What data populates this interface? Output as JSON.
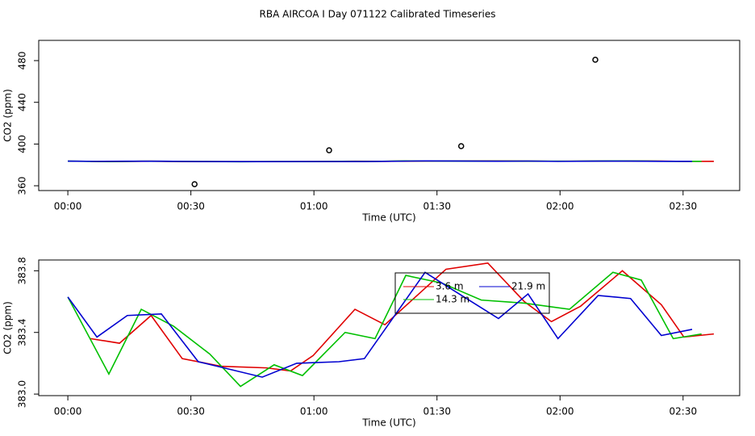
{
  "title": "RBA AIRCOA I  Day 071122  Calibrated Timeseries",
  "chart_data": [
    {
      "type": "line",
      "xlabel": "Time (UTC)",
      "ylabel": "CO2 (ppm)",
      "xlim": [
        -7.1,
        163.8
      ],
      "ylim": [
        355.4,
        499.4
      ],
      "xticks": [
        {
          "value": 0,
          "label": "00:00"
        },
        {
          "value": 30,
          "label": "00:30"
        },
        {
          "value": 60,
          "label": "01:00"
        },
        {
          "value": 90,
          "label": "01:30"
        },
        {
          "value": 120,
          "label": "02:00"
        },
        {
          "value": 150,
          "label": "02:30"
        }
      ],
      "yticks": [
        360,
        400,
        440,
        480
      ],
      "series": [
        {
          "name": "3.6 m",
          "color": "#e00000",
          "x": [
            5.5,
            12.6,
            20.3,
            27.9,
            37.5,
            48.4,
            54.3,
            59.8,
            70.0,
            77.3,
            92.2,
            102.4,
            111.3,
            117.9,
            125.0,
            135.2,
            144.7,
            150.2,
            157.5
          ],
          "values": [
            383.36,
            383.33,
            383.51,
            383.23,
            383.18,
            383.17,
            383.15,
            383.25,
            383.55,
            383.45,
            383.81,
            383.85,
            383.6,
            383.47,
            383.57,
            383.8,
            383.58,
            383.37,
            383.39
          ]
        },
        {
          "name": "14.3 m",
          "color": "#00c000",
          "x": [
            0,
            10.0,
            17.9,
            25.8,
            34.6,
            42.1,
            50.3,
            57.2,
            67.6,
            74.9,
            82.4,
            91.2,
            100.8,
            111.3,
            122.3,
            132.9,
            139.8,
            147.6,
            154.5
          ],
          "values": [
            383.63,
            383.13,
            383.55,
            383.44,
            383.26,
            383.05,
            383.19,
            383.12,
            383.4,
            383.36,
            383.77,
            383.72,
            383.61,
            383.59,
            383.55,
            383.79,
            383.74,
            383.36,
            383.39
          ]
        },
        {
          "name": "21.9 m",
          "color": "#0000d0",
          "x": [
            0,
            7.1,
            14.5,
            22.8,
            31.8,
            47.4,
            55.8,
            66.1,
            72.3,
            87.1,
            94.2,
            105.0,
            112.2,
            119.5,
            129.3,
            137.2,
            144.7,
            152.2
          ],
          "values": [
            383.63,
            383.37,
            383.51,
            383.52,
            383.21,
            383.11,
            383.2,
            383.21,
            383.23,
            383.79,
            383.67,
            383.49,
            383.65,
            383.36,
            383.64,
            383.62,
            383.38,
            383.42
          ]
        }
      ],
      "points": {
        "x": [
          30.9,
          63.7,
          95.9,
          128.6
        ],
        "values": [
          361.5,
          394,
          398,
          480.8
        ]
      }
    },
    {
      "type": "line",
      "xlabel": "Time (UTC)",
      "ylabel": "CO2 (ppm)",
      "legend": "top-center",
      "xlim": [
        -7.1,
        163.8
      ],
      "ylim": [
        382.99,
        383.87
      ],
      "xticks": [
        {
          "value": 0,
          "label": "00:00"
        },
        {
          "value": 30,
          "label": "00:30"
        },
        {
          "value": 60,
          "label": "01:00"
        },
        {
          "value": 90,
          "label": "01:30"
        },
        {
          "value": 120,
          "label": "02:00"
        },
        {
          "value": 150,
          "label": "02:30"
        }
      ],
      "yticks": [
        {
          "value": 383.0,
          "label": "383.0"
        },
        {
          "value": 383.4,
          "label": "383.4"
        },
        {
          "value": 383.8,
          "label": "383.8"
        }
      ],
      "series": [
        {
          "name": "3.6 m",
          "color": "#e00000",
          "x": [
            5.5,
            12.6,
            20.3,
            27.9,
            37.5,
            48.4,
            54.3,
            59.8,
            70.0,
            77.3,
            92.2,
            102.4,
            111.3,
            117.9,
            125.0,
            135.2,
            144.7,
            150.2,
            157.5
          ],
          "values": [
            383.36,
            383.33,
            383.51,
            383.23,
            383.18,
            383.17,
            383.15,
            383.25,
            383.55,
            383.45,
            383.81,
            383.85,
            383.6,
            383.47,
            383.57,
            383.8,
            383.58,
            383.37,
            383.39
          ]
        },
        {
          "name": "14.3 m",
          "color": "#00c000",
          "x": [
            0,
            10.0,
            17.9,
            25.8,
            34.6,
            42.1,
            50.3,
            57.2,
            67.6,
            74.9,
            82.4,
            91.2,
            100.8,
            111.3,
            122.3,
            132.9,
            139.8,
            147.6,
            154.5
          ],
          "values": [
            383.63,
            383.13,
            383.55,
            383.44,
            383.26,
            383.05,
            383.19,
            383.12,
            383.4,
            383.36,
            383.77,
            383.72,
            383.61,
            383.59,
            383.55,
            383.79,
            383.74,
            383.36,
            383.39
          ]
        },
        {
          "name": "21.9 m",
          "color": "#0000d0",
          "x": [
            0,
            7.1,
            14.5,
            22.8,
            31.8,
            47.4,
            55.8,
            66.1,
            72.3,
            87.1,
            94.2,
            105.0,
            112.2,
            119.5,
            129.3,
            137.2,
            144.7,
            152.2
          ],
          "values": [
            383.63,
            383.37,
            383.51,
            383.52,
            383.21,
            383.11,
            383.2,
            383.21,
            383.23,
            383.79,
            383.67,
            383.49,
            383.65,
            383.36,
            383.64,
            383.62,
            383.38,
            383.42
          ]
        }
      ]
    }
  ]
}
